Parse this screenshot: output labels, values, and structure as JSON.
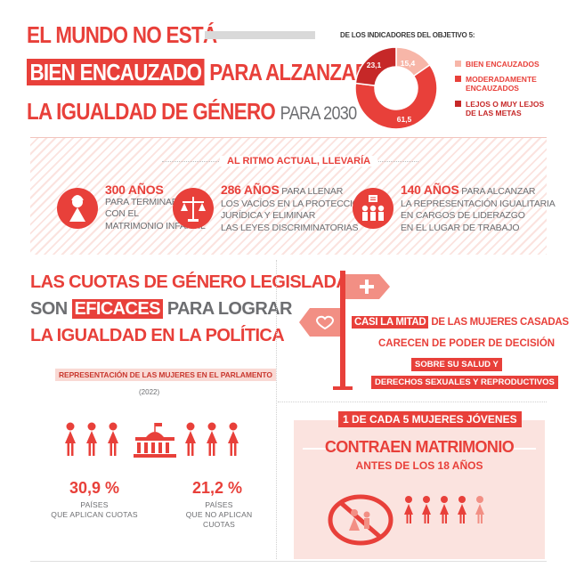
{
  "header": {
    "line1": "EL MUNDO NO ESTÁ",
    "line2_box": "BIEN ENCAUZADO",
    "line2_rest": "PARA ALZANZAR",
    "line3": "LA IGUALDAD DE GÉNERO",
    "line3_small": "PARA 2030"
  },
  "donut": {
    "caption": "DE LOS INDICADORES DEL OBJETIVO 5:",
    "values": [
      {
        "label": "15,4",
        "value": 15.4,
        "color": "#f7b6a8"
      },
      {
        "label": "61,5",
        "value": 61.5,
        "color": "#e8403a"
      },
      {
        "label": "23,1",
        "value": 23.1,
        "color": "#c62828"
      }
    ],
    "legend": [
      {
        "text": "BIEN ENCAUZADOS",
        "color": "#f7b6a8"
      },
      {
        "text": "MODERADAMENTE ENCAUZADOS",
        "color": "#e8403a"
      },
      {
        "text": "LEJOS O MUY LEJOS DE LAS METAS",
        "color": "#c62828"
      }
    ]
  },
  "band": {
    "title": "AL RITMO ACTUAL, LLEVARÍA",
    "stats": [
      {
        "big": "300 AÑOS",
        "l1": "PARA TERMINAR",
        "l2": "CON EL",
        "l3": "MATRIMONIO INFANTIL",
        "l4": ""
      },
      {
        "big": "286 AÑOS",
        "l1_rest": "PARA LLENAR",
        "l1": "LOS VACÍOS EN LA PROTECCIÓN",
        "l2": "JURÍDICA Y ELIMINAR",
        "l3": "LAS LEYES DISCRIMINATORIAS",
        "l4": ""
      },
      {
        "big": "140 AÑOS",
        "l1_rest": "PARA ALCANZAR",
        "l1": "LA REPRESENTACIÓN IGUALITARIA",
        "l2": "EN CARGOS DE LIDERAZGO",
        "l3": "EN EL LUGAR DE TRABAJO",
        "l4": ""
      }
    ]
  },
  "quotas": {
    "line1": "LAS CUOTAS DE GÉNERO LEGISLADAS",
    "line2_pre": "SON",
    "line2_box": "EFICACES",
    "line2_post": "PARA LOGRAR",
    "line3": "LA IGUALDAD EN LA POLÍTICA",
    "rep_label": "REPRESENTACIÓN DE LAS MUJERES EN EL PARLAMENTO",
    "rep_year": "(2022)",
    "left_pct": "30,9 %",
    "left_cap1": "PAÍSES",
    "left_cap2": "QUE APLICAN CUOTAS",
    "right_pct": "21,2 %",
    "right_cap1": "PAÍSES",
    "right_cap2": "QUE NO APLICAN CUOTAS"
  },
  "married": {
    "box": "CASI LA MITAD",
    "rest": "DE LAS MUJERES CASADAS",
    "line2": "CARECEN DE PODER DE DECISIÓN",
    "line3": "SOBRE SU SALUD Y",
    "line4": "DERECHOS SEXUALES Y REPRODUCTIVOS"
  },
  "child_marriage": {
    "line1": "1 DE CADA 5 MUJERES JÓVENES",
    "line2": "CONTRAEN MATRIMONIO",
    "line3": "ANTES DE LOS 18 AÑOS"
  },
  "colors": {
    "accent": "#e8403a",
    "dark": "#c62828",
    "light": "#f7b6a8",
    "grey": "#6d6e71",
    "pink_bg": "#fbe3df"
  }
}
